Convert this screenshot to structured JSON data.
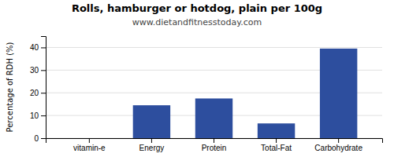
{
  "chart_data": {
    "type": "bar",
    "title": "Rolls, hamburger or hotdog, plain per 100g",
    "subtitle": "www.dietandfitnesstoday.com",
    "categories": [
      "vitamin-e",
      "Energy",
      "Protein",
      "Total-Fat",
      "Carbohydrate"
    ],
    "values": [
      0,
      14.5,
      17.5,
      6.5,
      39.5
    ],
    "color": "#2d4e9e",
    "ylabel": "Percentage of RDH (%)",
    "ylim": [
      0,
      45
    ],
    "yticks": [
      0,
      10,
      20,
      30,
      40
    ],
    "grid": true
  }
}
